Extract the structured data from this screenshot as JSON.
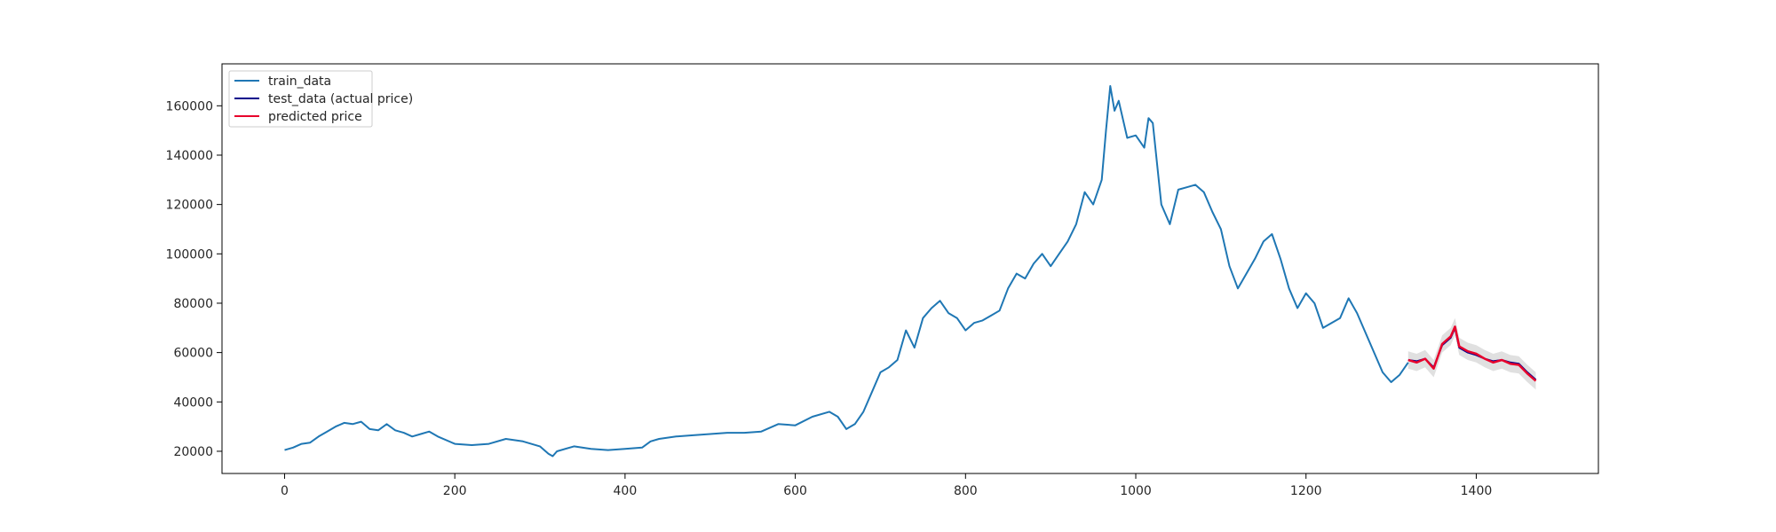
{
  "chart_data": {
    "type": "line",
    "title": "",
    "xlabel": "",
    "ylabel": "",
    "xlim": [
      -73.5,
      1543.5
    ],
    "ylim": [
      11000,
      177000
    ],
    "x_ticks": [
      0,
      200,
      400,
      600,
      800,
      1000,
      1200,
      1400
    ],
    "y_ticks": [
      20000,
      40000,
      60000,
      80000,
      100000,
      120000,
      140000,
      160000
    ],
    "grid": false,
    "legend_position": "top-left",
    "legend": [
      "train_data",
      "test_data (actual price)",
      "predicted price"
    ],
    "colors": {
      "train_data": "#1f77b4",
      "test_data": "#00008b",
      "predicted": "#e8002b",
      "band": "#d3d3d3"
    },
    "series": [
      {
        "name": "train_data",
        "x": [
          0,
          10,
          20,
          30,
          40,
          50,
          60,
          70,
          80,
          90,
          100,
          110,
          120,
          130,
          140,
          150,
          160,
          170,
          180,
          200,
          220,
          240,
          260,
          280,
          300,
          310,
          315,
          320,
          340,
          360,
          380,
          400,
          420,
          430,
          440,
          460,
          480,
          500,
          520,
          540,
          560,
          580,
          600,
          620,
          640,
          650,
          660,
          670,
          680,
          690,
          700,
          710,
          720,
          730,
          740,
          750,
          760,
          770,
          780,
          790,
          800,
          810,
          820,
          830,
          840,
          850,
          860,
          870,
          880,
          890,
          900,
          910,
          920,
          930,
          940,
          950,
          960,
          965,
          970,
          975,
          980,
          990,
          1000,
          1010,
          1015,
          1020,
          1030,
          1040,
          1050,
          1060,
          1070,
          1080,
          1090,
          1100,
          1110,
          1120,
          1130,
          1140,
          1150,
          1160,
          1170,
          1180,
          1190,
          1200,
          1210,
          1220,
          1230,
          1240,
          1250,
          1260,
          1270,
          1280,
          1290,
          1300,
          1310,
          1320
        ],
        "values": [
          20500,
          21500,
          23000,
          23500,
          26000,
          28000,
          30000,
          31500,
          31000,
          32000,
          29000,
          28500,
          31000,
          28500,
          27500,
          26000,
          27000,
          28000,
          26000,
          23000,
          22500,
          23000,
          25000,
          24000,
          22000,
          19000,
          18000,
          20000,
          22000,
          21000,
          20500,
          21000,
          21500,
          24000,
          25000,
          26000,
          26500,
          27000,
          27500,
          27500,
          28000,
          31000,
          30500,
          34000,
          36000,
          34000,
          29000,
          31000,
          36000,
          44000,
          52000,
          54000,
          57000,
          69000,
          62000,
          74000,
          78000,
          81000,
          76000,
          74000,
          69000,
          72000,
          73000,
          75000,
          77000,
          86000,
          92000,
          90000,
          96000,
          100000,
          95000,
          100000,
          105000,
          112000,
          125000,
          120000,
          130000,
          150000,
          168000,
          158000,
          162000,
          147000,
          148000,
          143000,
          155000,
          153000,
          120000,
          112000,
          126000,
          127000,
          128000,
          125000,
          117000,
          110000,
          95000,
          86000,
          92000,
          98000,
          105000,
          108000,
          98000,
          86000,
          78000,
          84000,
          80000,
          70000,
          72000,
          74000,
          82000,
          76000,
          68000,
          60000,
          52000,
          48000,
          51000,
          56000
        ]
      },
      {
        "name": "test_data (actual price)",
        "x": [
          1320,
          1330,
          1340,
          1350,
          1360,
          1370,
          1375,
          1380,
          1390,
          1400,
          1410,
          1420,
          1430,
          1440,
          1450,
          1460,
          1470
        ],
        "values": [
          57000,
          56500,
          57500,
          54000,
          63000,
          66000,
          70000,
          62000,
          60000,
          59000,
          57500,
          56500,
          57000,
          56000,
          55500,
          52000,
          49000
        ]
      },
      {
        "name": "predicted price",
        "x": [
          1320,
          1330,
          1340,
          1350,
          1360,
          1370,
          1375,
          1380,
          1390,
          1400,
          1410,
          1420,
          1430,
          1440,
          1450,
          1460,
          1470
        ],
        "values": [
          57000,
          56000,
          57500,
          53500,
          63500,
          66500,
          70500,
          62500,
          60500,
          59500,
          57500,
          56000,
          57000,
          55500,
          55000,
          51500,
          48500
        ],
        "band": 3500
      }
    ]
  }
}
